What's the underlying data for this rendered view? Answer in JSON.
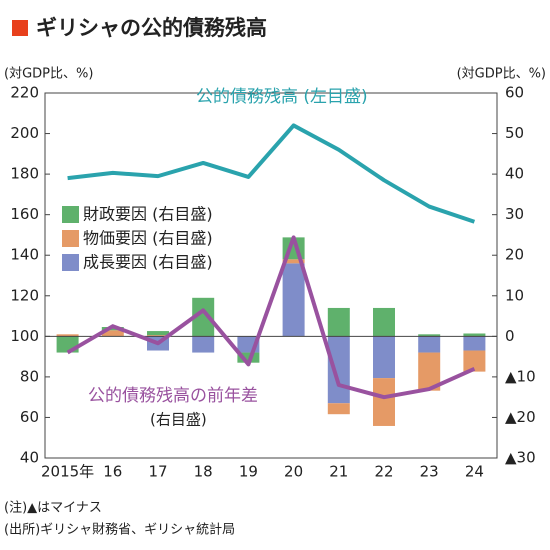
{
  "chart_data": {
    "type": "bar_line",
    "title": "ギリシャの公的債務残高",
    "left_unit": "(対GDP比、%)",
    "right_unit": "(対GDP比、%)",
    "categories": [
      "2015年",
      "16",
      "17",
      "18",
      "19",
      "20",
      "21",
      "22",
      "23",
      "24"
    ],
    "ylim": [
      40,
      220
    ],
    "yticks": [
      40,
      60,
      80,
      100,
      120,
      140,
      160,
      180,
      200,
      220
    ],
    "y2lim": [
      -30,
      60
    ],
    "y2ticks": [
      {
        "value": -30,
        "label": "▲30"
      },
      {
        "value": -20,
        "label": "▲20"
      },
      {
        "value": -10,
        "label": "▲10"
      },
      0,
      10,
      20,
      30,
      40,
      50,
      60
    ],
    "grid": false,
    "series": [
      {
        "name": "公的債務残高 (左目盛)",
        "type": "line",
        "color": "#2aa3ad",
        "axis": "y",
        "values": [
          178,
          180.6,
          179,
          185.5,
          178.6,
          204,
          192,
          177,
          164,
          156.5
        ]
      },
      {
        "name": "財政要因 (右目盛)",
        "type": "bar",
        "color": "#5fb16c",
        "axis": "y2",
        "values": [
          -4,
          0.8,
          1,
          9.5,
          -2.5,
          5.4,
          7,
          7,
          0.5,
          0.7
        ]
      },
      {
        "name": "物価要因 (右目盛)",
        "type": "bar",
        "color": "#e59a66",
        "axis": "y2",
        "values": [
          0.5,
          1.5,
          0.3,
          0,
          0,
          1,
          -2.7,
          -11.8,
          -9.4,
          -5.2
        ]
      },
      {
        "name": "成長要因 (右目盛)",
        "type": "bar",
        "color": "#7f8dc9",
        "axis": "y2",
        "values": [
          0,
          0,
          -3.5,
          -4,
          -4,
          18,
          -16.5,
          -10.3,
          -4,
          -3.5
        ]
      },
      {
        "name": "公的債務残高の前年差",
        "type": "line",
        "color": "#99529f",
        "axis": "y2",
        "values": [
          -4,
          2.5,
          -1.7,
          6.4,
          -6.9,
          24.4,
          -12,
          -15,
          -13,
          -8
        ]
      }
    ],
    "diff_axis_note": "(右目盛)"
  },
  "notes": [
    "(注)▲はマイナス",
    "(出所)ギリシャ財務省、ギリシャ統計局"
  ]
}
